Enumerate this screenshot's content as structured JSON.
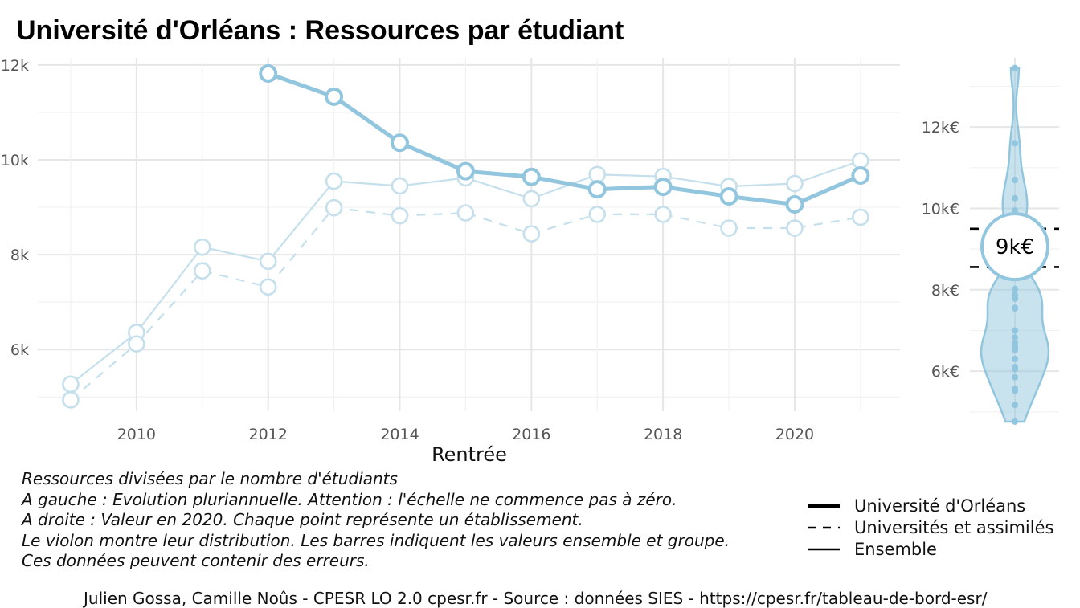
{
  "title": "Université d'Orléans  :  Ressources par étudiant",
  "chart_data": [
    {
      "type": "line",
      "xlabel": "Rentrée",
      "ylabel": "",
      "x": [
        2009,
        2010,
        2011,
        2012,
        2013,
        2014,
        2015,
        2016,
        2017,
        2018,
        2019,
        2020,
        2021
      ],
      "xlim": [
        2008.5,
        2021.6
      ],
      "ylim": [
        4700,
        12150
      ],
      "x_ticks": [
        2010,
        2012,
        2014,
        2016,
        2018,
        2020
      ],
      "y_ticks": [
        6000,
        8000,
        10000,
        12000
      ],
      "y_tick_labels": [
        "6k",
        "8k",
        "10k",
        "12k"
      ],
      "grid": true,
      "legend_position": "bottom-right",
      "series": [
        {
          "name": "Ensemble",
          "style": "thin-solid",
          "color": "#c5e0ec",
          "values": [
            5270,
            6360,
            8160,
            7860,
            9550,
            9450,
            9620,
            9180,
            9690,
            9650,
            9440,
            9500,
            9980
          ]
        },
        {
          "name": "Universités et assimilés",
          "style": "dashed",
          "color": "#c5e0ec",
          "values": [
            4940,
            6120,
            7660,
            7320,
            8990,
            8820,
            8880,
            8440,
            8850,
            8850,
            8560,
            8560,
            8790
          ]
        },
        {
          "name": "Université d'Orléans",
          "style": "thick-solid",
          "color": "#92c5de",
          "values": [
            null,
            null,
            null,
            11820,
            11330,
            10360,
            9760,
            9640,
            9380,
            9430,
            9230,
            9060,
            9670
          ]
        }
      ]
    },
    {
      "type": "scatter",
      "subtype": "violin",
      "year": 2020,
      "ylim": [
        4700,
        13700
      ],
      "y_ticks": [
        6000,
        8000,
        10000,
        12000
      ],
      "y_tick_labels": [
        "6k€",
        "8k€",
        "10k€",
        "12k€"
      ],
      "color": "#92c5de",
      "highlight_value": 9060,
      "highlight_label": "9k€",
      "reference_lines": [
        9500,
        8560
      ],
      "values": [
        13450,
        11600,
        10700,
        10250,
        9950,
        9700,
        8400,
        8020,
        7880,
        7800,
        7780,
        7560,
        7540,
        7000,
        6830,
        6700,
        6620,
        6580,
        6520,
        6300,
        6100,
        6050,
        5850,
        5570,
        5520,
        5170,
        4760
      ]
    }
  ],
  "caption": [
    "Ressources divisées par le nombre d'étudiants",
    "A gauche : Evolution pluriannuelle. Attention : l'échelle ne commence pas à zéro.",
    "A droite : Valeur en 2020. Chaque point représente un établissement.",
    "Le violon montre leur distribution. Les barres indiquent les valeurs ensemble et groupe.",
    "Ces données peuvent contenir des erreurs."
  ],
  "legend": [
    {
      "label": "Université d'Orléans",
      "style": "thick-solid"
    },
    {
      "label": "Universités et assimilés",
      "style": "dashed"
    },
    {
      "label": "Ensemble",
      "style": "thin-solid"
    }
  ],
  "footer": "Julien Gossa, Camille Noûs - CPESR LO 2.0 cpesr.fr - Source : données SIES - https://cpesr.fr/tableau-de-bord-esr/"
}
